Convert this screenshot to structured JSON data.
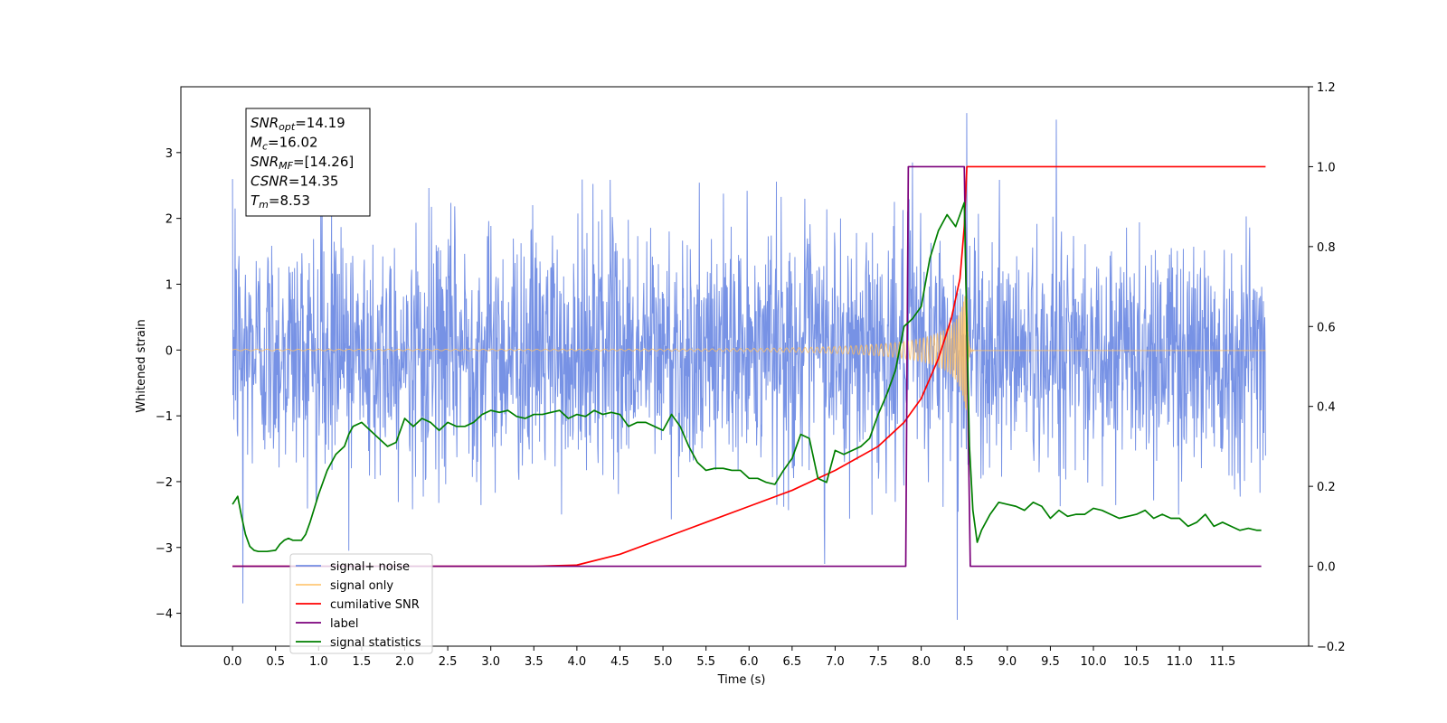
{
  "chart_data": {
    "type": "line",
    "title": "",
    "xlabel": "Time (s)",
    "ylabel": "Whitened strain",
    "y2label": "",
    "xlim": [
      -0.6,
      12.5
    ],
    "ylim": [
      -4.5,
      4.0
    ],
    "y2lim": [
      -0.2,
      1.2
    ],
    "x_ticks": [
      "0.0",
      "0.5",
      "1.0",
      "1.5",
      "2.0",
      "2.5",
      "3.0",
      "3.5",
      "4.0",
      "4.5",
      "5.0",
      "5.5",
      "6.0",
      "6.5",
      "7.0",
      "7.5",
      "8.0",
      "8.5",
      "9.0",
      "9.5",
      "10.0",
      "10.5",
      "11.0",
      "11.5"
    ],
    "y_ticks": [
      "3",
      "2",
      "1",
      "0",
      "−1",
      "−2",
      "−3",
      "−4"
    ],
    "y2_ticks": [
      "1.2",
      "1.0",
      "0.8",
      "0.6",
      "0.4",
      "0.2",
      "0.0",
      "−0.2"
    ],
    "legend_placement": "lower-left",
    "grid": false,
    "annotation": {
      "lines": [
        {
          "sym": "SNR",
          "sub": "opt",
          "value": "=14.19"
        },
        {
          "sym": "M",
          "sub": "c",
          "value": "=16.02"
        },
        {
          "sym": "SNR",
          "sub": "MF",
          "value": "=[14.26]"
        },
        {
          "sym": "CSNR",
          "sub": "",
          "value": "=14.35"
        },
        {
          "sym": "T",
          "sub": "m",
          "value": "=8.53"
        }
      ]
    },
    "series": [
      {
        "name": "signal+ noise",
        "color": "#5f7fe0",
        "axis": "left",
        "kind": "noise",
        "x_range": [
          0.0,
          12.0
        ],
        "typical_envelope": 1.3,
        "spikes": [
          {
            "x": 0.03,
            "y": 2.15
          },
          {
            "x": 0.12,
            "y": -3.85
          },
          {
            "x": 1.35,
            "y": -3.05
          },
          {
            "x": 6.88,
            "y": -3.25
          },
          {
            "x": 8.42,
            "y": -4.1
          },
          {
            "x": 8.53,
            "y": 3.6
          },
          {
            "x": 9.57,
            "y": 3.5
          },
          {
            "x": 7.9,
            "y": 2.85
          }
        ]
      },
      {
        "name": "signal only",
        "color": "#ffbf60",
        "axis": "left",
        "kind": "chirp",
        "x_range": [
          0.0,
          12.0
        ],
        "merger_time": 8.53,
        "peak_amplitude": 1.05
      },
      {
        "name": "cumilative SNR",
        "color": "#ff0000",
        "axis": "right",
        "x": [
          0.0,
          3.5,
          4.0,
          4.5,
          5.0,
          5.5,
          6.0,
          6.5,
          7.0,
          7.5,
          7.8,
          8.0,
          8.2,
          8.35,
          8.45,
          8.5,
          8.53,
          8.55,
          12.0
        ],
        "y": [
          0.0,
          0.0,
          0.003,
          0.03,
          0.07,
          0.11,
          0.15,
          0.19,
          0.24,
          0.3,
          0.36,
          0.42,
          0.52,
          0.62,
          0.72,
          0.85,
          1.0,
          1.0,
          1.0
        ]
      },
      {
        "name": "label",
        "color": "#7b007b",
        "axis": "right",
        "x": [
          0.0,
          7.82,
          7.85,
          8.5,
          8.57,
          11.95
        ],
        "y": [
          0.0,
          0.0,
          1.0,
          1.0,
          0.0,
          0.0
        ]
      },
      {
        "name": "signal statistics",
        "color": "#007f00",
        "axis": "right",
        "x": [
          0.0,
          0.06,
          0.1,
          0.15,
          0.2,
          0.25,
          0.3,
          0.4,
          0.5,
          0.55,
          0.6,
          0.65,
          0.7,
          0.8,
          0.85,
          0.9,
          1.0,
          1.1,
          1.2,
          1.3,
          1.35,
          1.4,
          1.5,
          1.6,
          1.7,
          1.8,
          1.9,
          2.0,
          2.1,
          2.2,
          2.3,
          2.4,
          2.5,
          2.6,
          2.7,
          2.8,
          2.9,
          3.0,
          3.1,
          3.2,
          3.3,
          3.4,
          3.5,
          3.6,
          3.7,
          3.8,
          3.9,
          4.0,
          4.1,
          4.2,
          4.3,
          4.4,
          4.5,
          4.6,
          4.7,
          4.8,
          4.9,
          5.0,
          5.1,
          5.2,
          5.3,
          5.4,
          5.5,
          5.6,
          5.7,
          5.8,
          5.9,
          6.0,
          6.1,
          6.2,
          6.3,
          6.4,
          6.5,
          6.6,
          6.7,
          6.8,
          6.9,
          7.0,
          7.1,
          7.2,
          7.3,
          7.4,
          7.5,
          7.6,
          7.7,
          7.8,
          7.9,
          8.0,
          8.1,
          8.2,
          8.3,
          8.4,
          8.45,
          8.5,
          8.53,
          8.56,
          8.6,
          8.65,
          8.7,
          8.8,
          8.9,
          9.0,
          9.1,
          9.2,
          9.3,
          9.4,
          9.5,
          9.6,
          9.7,
          9.8,
          9.9,
          10.0,
          10.1,
          10.2,
          10.3,
          10.4,
          10.5,
          10.6,
          10.7,
          10.8,
          10.9,
          11.0,
          11.1,
          11.2,
          11.3,
          11.4,
          11.5,
          11.6,
          11.7,
          11.8,
          11.9,
          11.95
        ],
        "y": [
          0.155,
          0.175,
          0.13,
          0.08,
          0.05,
          0.04,
          0.037,
          0.037,
          0.04,
          0.055,
          0.065,
          0.07,
          0.065,
          0.065,
          0.08,
          0.11,
          0.18,
          0.24,
          0.28,
          0.3,
          0.33,
          0.35,
          0.36,
          0.34,
          0.32,
          0.3,
          0.31,
          0.37,
          0.35,
          0.37,
          0.36,
          0.34,
          0.36,
          0.35,
          0.35,
          0.36,
          0.38,
          0.39,
          0.385,
          0.39,
          0.375,
          0.37,
          0.38,
          0.38,
          0.385,
          0.39,
          0.37,
          0.38,
          0.375,
          0.39,
          0.38,
          0.385,
          0.38,
          0.35,
          0.36,
          0.36,
          0.35,
          0.34,
          0.38,
          0.35,
          0.3,
          0.26,
          0.24,
          0.245,
          0.245,
          0.24,
          0.24,
          0.22,
          0.22,
          0.21,
          0.205,
          0.24,
          0.27,
          0.33,
          0.32,
          0.22,
          0.21,
          0.29,
          0.28,
          0.29,
          0.3,
          0.32,
          0.38,
          0.43,
          0.49,
          0.6,
          0.62,
          0.65,
          0.77,
          0.84,
          0.88,
          0.85,
          0.88,
          0.91,
          0.6,
          0.3,
          0.14,
          0.06,
          0.09,
          0.13,
          0.16,
          0.155,
          0.15,
          0.14,
          0.16,
          0.15,
          0.12,
          0.14,
          0.125,
          0.13,
          0.13,
          0.145,
          0.14,
          0.13,
          0.12,
          0.125,
          0.13,
          0.14,
          0.12,
          0.13,
          0.12,
          0.12,
          0.1,
          0.11,
          0.13,
          0.1,
          0.11,
          0.1,
          0.09,
          0.095,
          0.09,
          0.09
        ]
      }
    ]
  }
}
